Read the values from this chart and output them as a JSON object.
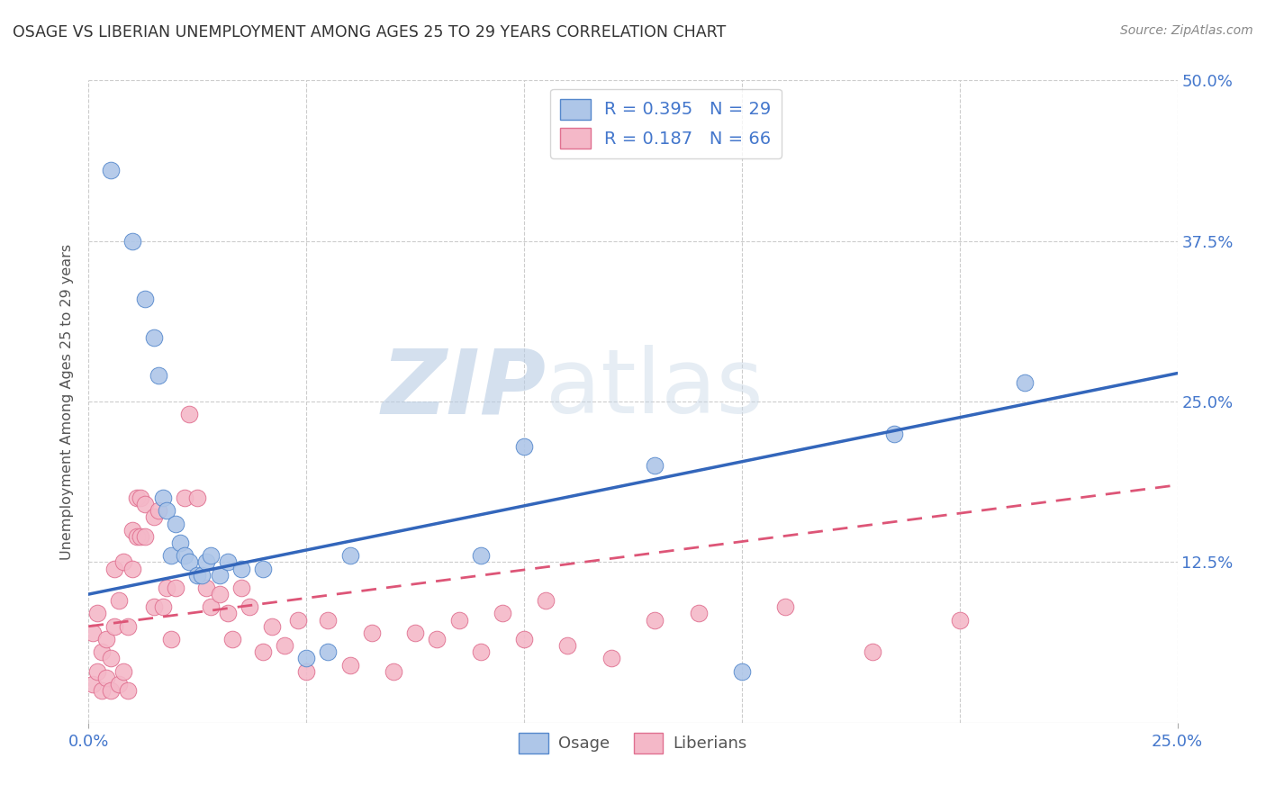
{
  "title": "OSAGE VS LIBERIAN UNEMPLOYMENT AMONG AGES 25 TO 29 YEARS CORRELATION CHART",
  "source": "Source: ZipAtlas.com",
  "ylabel": "Unemployment Among Ages 25 to 29 years",
  "xlim": [
    0,
    0.25
  ],
  "ylim": [
    0,
    0.5
  ],
  "osage_color": "#aec6e8",
  "liberian_color": "#f4b8c8",
  "osage_edge": "#5588cc",
  "liberian_edge": "#e07090",
  "trend_osage_color": "#3366bb",
  "trend_liberian_color": "#dd5577",
  "legend_R_osage": "R = 0.395",
  "legend_N_osage": "N = 29",
  "legend_R_liberian": "R = 0.187",
  "legend_N_liberian": "N = 66",
  "watermark_zip": "ZIP",
  "watermark_atlas": "atlas",
  "osage_x": [
    0.005,
    0.01,
    0.013,
    0.015,
    0.016,
    0.017,
    0.018,
    0.019,
    0.02,
    0.021,
    0.022,
    0.023,
    0.025,
    0.026,
    0.027,
    0.028,
    0.03,
    0.032,
    0.035,
    0.04,
    0.05,
    0.055,
    0.06,
    0.09,
    0.1,
    0.13,
    0.15,
    0.185,
    0.215
  ],
  "osage_y": [
    0.43,
    0.375,
    0.33,
    0.3,
    0.27,
    0.175,
    0.165,
    0.13,
    0.155,
    0.14,
    0.13,
    0.125,
    0.115,
    0.115,
    0.125,
    0.13,
    0.115,
    0.125,
    0.12,
    0.12,
    0.05,
    0.055,
    0.13,
    0.13,
    0.215,
    0.2,
    0.04,
    0.225,
    0.265
  ],
  "liberian_x": [
    0.001,
    0.001,
    0.002,
    0.002,
    0.003,
    0.003,
    0.004,
    0.004,
    0.005,
    0.005,
    0.006,
    0.006,
    0.007,
    0.007,
    0.008,
    0.008,
    0.009,
    0.009,
    0.01,
    0.01,
    0.011,
    0.011,
    0.012,
    0.012,
    0.013,
    0.013,
    0.015,
    0.015,
    0.016,
    0.017,
    0.018,
    0.019,
    0.02,
    0.022,
    0.023,
    0.025,
    0.027,
    0.028,
    0.03,
    0.032,
    0.033,
    0.035,
    0.037,
    0.04,
    0.042,
    0.045,
    0.048,
    0.05,
    0.055,
    0.06,
    0.065,
    0.07,
    0.075,
    0.08,
    0.085,
    0.09,
    0.095,
    0.1,
    0.105,
    0.11,
    0.12,
    0.13,
    0.14,
    0.16,
    0.18,
    0.2
  ],
  "liberian_y": [
    0.03,
    0.07,
    0.04,
    0.085,
    0.025,
    0.055,
    0.035,
    0.065,
    0.025,
    0.05,
    0.075,
    0.12,
    0.03,
    0.095,
    0.04,
    0.125,
    0.025,
    0.075,
    0.12,
    0.15,
    0.145,
    0.175,
    0.145,
    0.175,
    0.145,
    0.17,
    0.16,
    0.09,
    0.165,
    0.09,
    0.105,
    0.065,
    0.105,
    0.175,
    0.24,
    0.175,
    0.105,
    0.09,
    0.1,
    0.085,
    0.065,
    0.105,
    0.09,
    0.055,
    0.075,
    0.06,
    0.08,
    0.04,
    0.08,
    0.045,
    0.07,
    0.04,
    0.07,
    0.065,
    0.08,
    0.055,
    0.085,
    0.065,
    0.095,
    0.06,
    0.05,
    0.08,
    0.085,
    0.09,
    0.055,
    0.08
  ],
  "osage_trend_x0": 0.0,
  "osage_trend_y0": 0.1,
  "osage_trend_x1": 0.25,
  "osage_trend_y1": 0.272,
  "liberian_trend_x0": 0.0,
  "liberian_trend_y0": 0.075,
  "liberian_trend_x1": 0.25,
  "liberian_trend_y1": 0.185
}
